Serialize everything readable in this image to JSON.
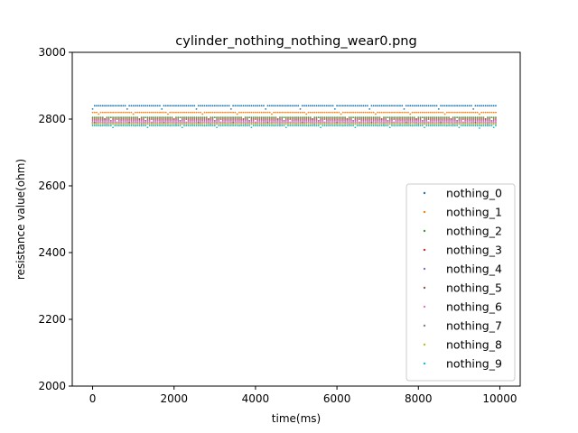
{
  "chart_data": {
    "type": "scatter",
    "title": "cylinder_nothing_nothing_wear0.png",
    "xlabel": "time(ms)",
    "ylabel": "resistance value(ohm)",
    "xlim": [
      -500,
      10500
    ],
    "ylim": [
      2000,
      3000
    ],
    "xticks": [
      0,
      2000,
      4000,
      6000,
      8000,
      10000
    ],
    "yticks": [
      2000,
      2200,
      2400,
      2600,
      2800,
      3000
    ],
    "grid": false,
    "legend_position": "lower right",
    "x_range": [
      0,
      9900
    ],
    "x_step": 50,
    "series": [
      {
        "name": "nothing_0",
        "color": "#1f77b4",
        "base": 2840,
        "low": 2830
      },
      {
        "name": "nothing_1",
        "color": "#ff7f0e",
        "base": 2820,
        "low": 2815
      },
      {
        "name": "nothing_2",
        "color": "#2ca02c",
        "base": 2805,
        "low": 2800
      },
      {
        "name": "nothing_3",
        "color": "#d62728",
        "base": 2800,
        "low": 2795
      },
      {
        "name": "nothing_4",
        "color": "#9467bd",
        "base": 2795,
        "low": 2790
      },
      {
        "name": "nothing_5",
        "color": "#8c564b",
        "base": 2790,
        "low": 2785
      },
      {
        "name": "nothing_6",
        "color": "#e377c2",
        "base": 2790,
        "low": 2785
      },
      {
        "name": "nothing_7",
        "color": "#7f7f7f",
        "base": 2785,
        "low": 2780
      },
      {
        "name": "nothing_8",
        "color": "#bcbd22",
        "base": 2785,
        "low": 2780
      },
      {
        "name": "nothing_9",
        "color": "#17becf",
        "base": 2780,
        "low": 2775,
        "outlier": {
          "x": 9500,
          "y": 2773
        }
      }
    ]
  }
}
